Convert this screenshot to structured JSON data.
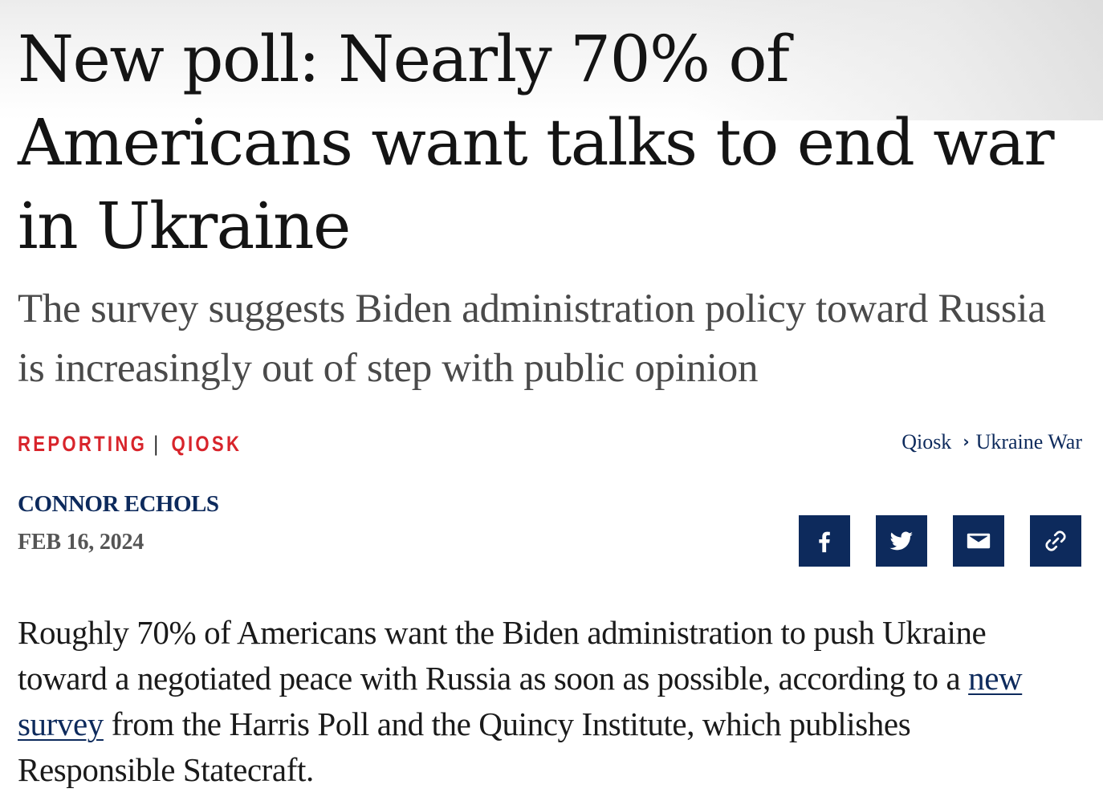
{
  "article": {
    "headline": "New poll: Nearly 70% of Americans want talks to end war in Ukraine",
    "subheadline": "The survey suggests Biden administration policy toward Russia is increasingly out of step with public opinion",
    "category": {
      "primary": "REPORTING",
      "separator": "|",
      "secondary": "QIOSK"
    },
    "breadcrumb": {
      "items": [
        "Qiosk",
        "Ukraine War"
      ],
      "separator_icon": "chevron-right-icon"
    },
    "author": "CONNOR ECHOLS",
    "date": "FEB 16, 2024",
    "share": {
      "buttons": [
        {
          "icon": "facebook-icon"
        },
        {
          "icon": "twitter-icon"
        },
        {
          "icon": "email-icon"
        },
        {
          "icon": "link-icon"
        }
      ]
    },
    "body": {
      "before_link": "Roughly 70% of Americans want the Biden administration to push Ukraine toward a negotiated peace with Russia as soon as possible, according to a ",
      "link_text": "new survey",
      "after_link": " from the Harris Poll and the Quincy Institute, which publishes Responsible Statecraft."
    }
  },
  "colors": {
    "headline": "#141414",
    "subhead": "#4a4a4a",
    "accent_red": "#d8242b",
    "navy": "#0d2a5c",
    "date_gray": "#555555"
  }
}
